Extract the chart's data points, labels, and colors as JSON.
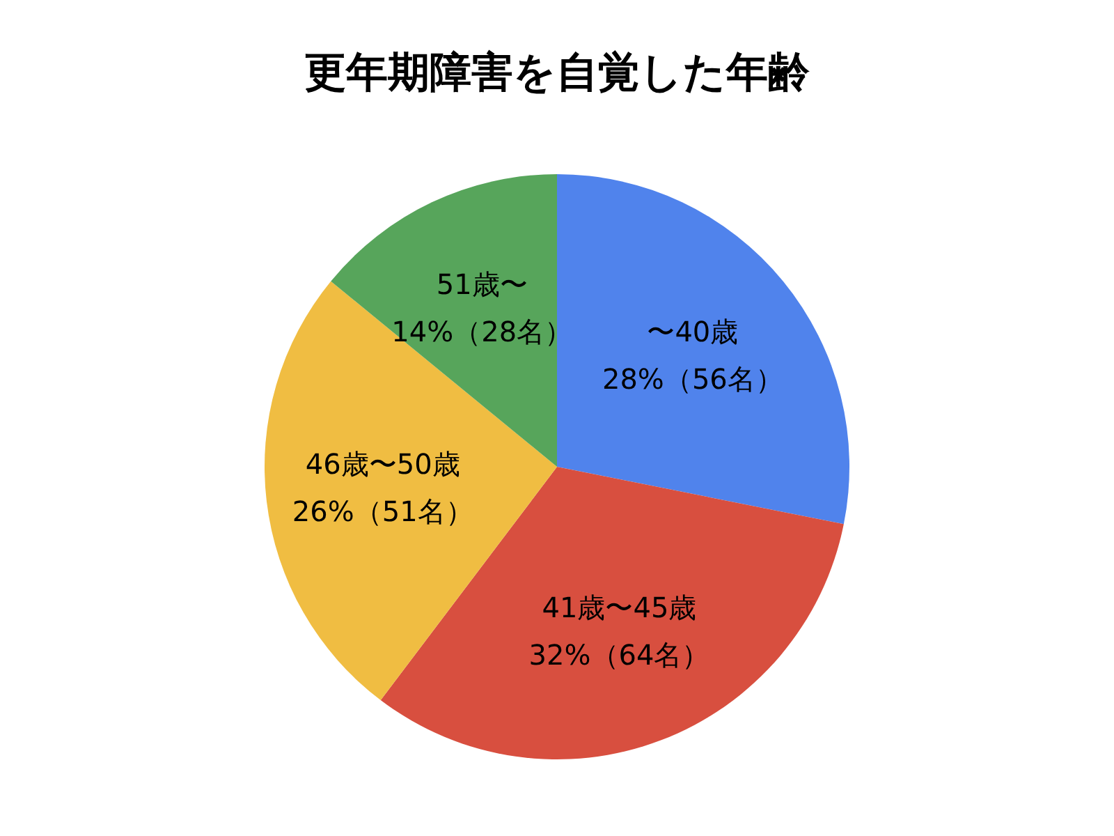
{
  "chart_data": {
    "type": "pie",
    "title": "更年期障害を自覚した年齢",
    "categories": [
      "〜40歳",
      "41歳〜45歳",
      "46歳〜50歳",
      "51歳〜"
    ],
    "values": [
      56,
      64,
      51,
      28
    ],
    "value_labels": [
      "28%（56名）",
      "32%（64名）",
      "26%（51名）",
      "14%（28名）"
    ],
    "colors": [
      "#5083ec",
      "#d84f3f",
      "#f0bd42",
      "#57a55b"
    ]
  }
}
